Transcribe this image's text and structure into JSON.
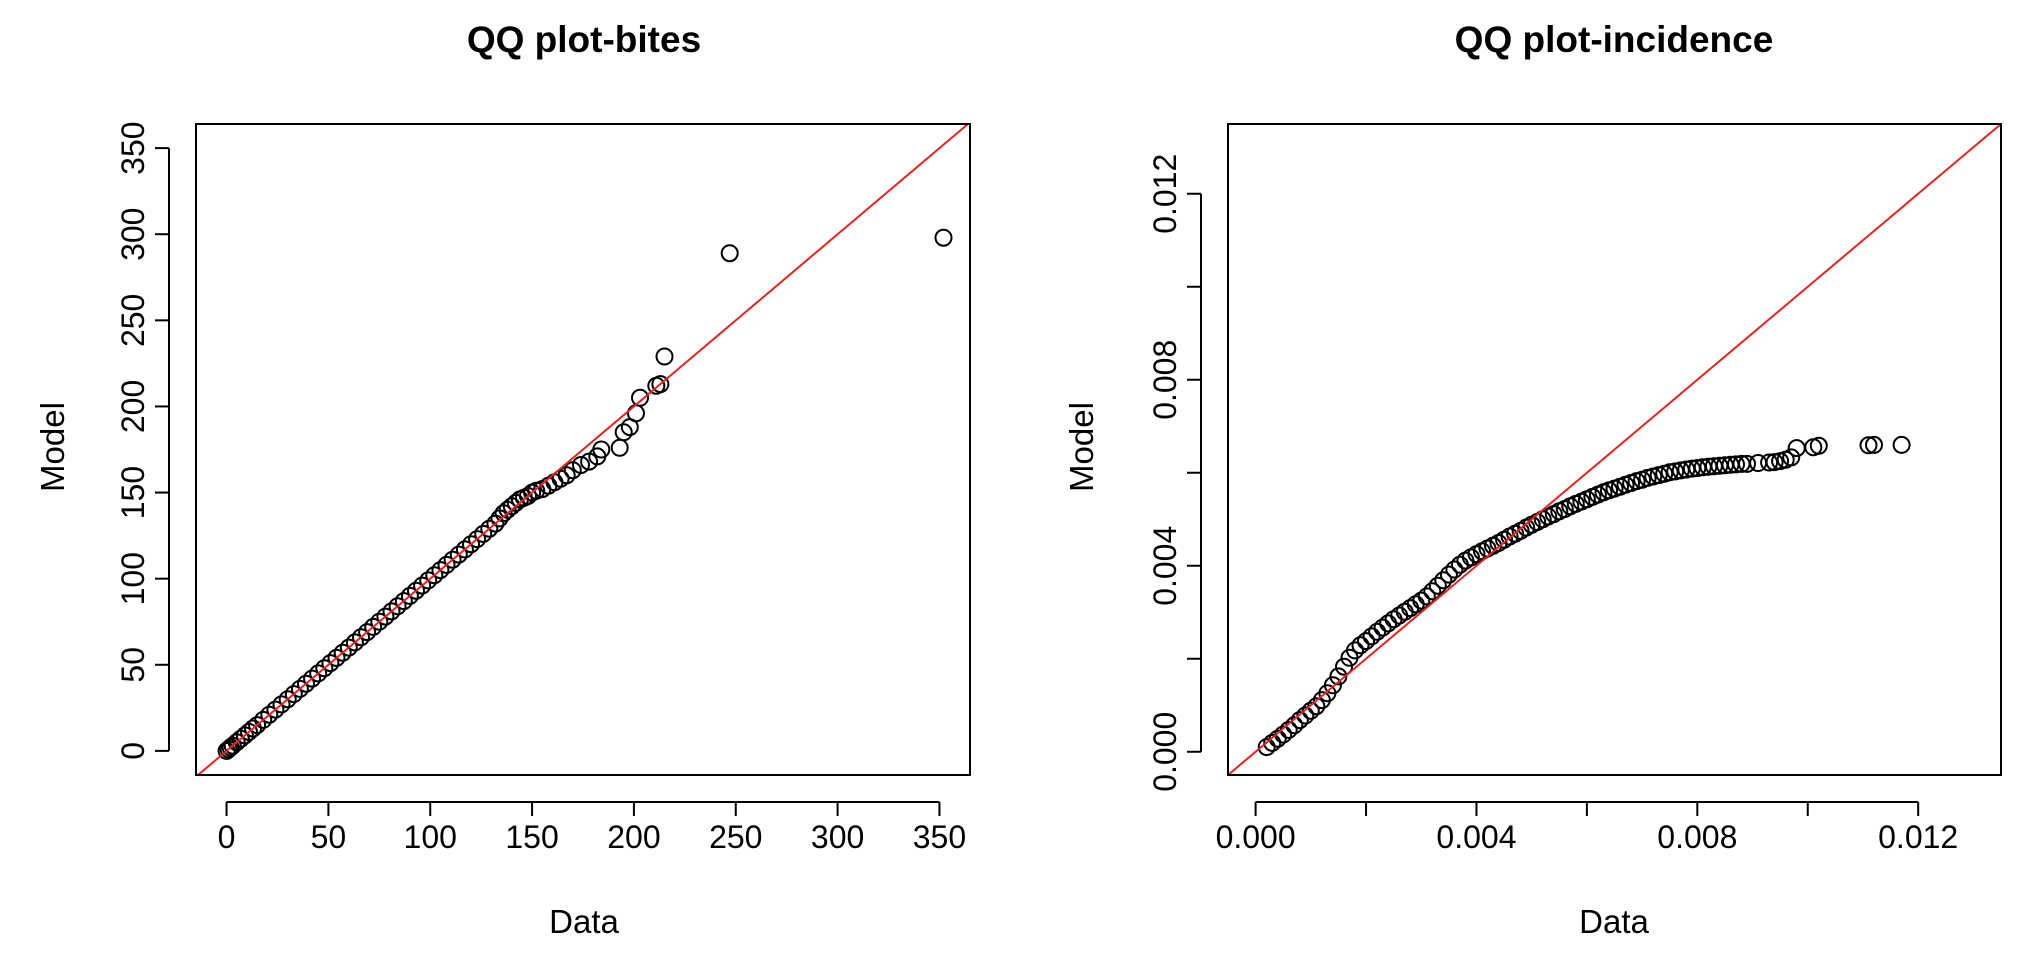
{
  "chart_data": [
    {
      "type": "scatter",
      "title": "QQ plot-bites",
      "xlabel": "Data",
      "ylabel": "Model",
      "xlim": [
        -15,
        365
      ],
      "ylim": [
        -14,
        364
      ],
      "xticks": [
        0,
        50,
        100,
        150,
        200,
        250,
        300,
        350
      ],
      "xtick_labels": [
        "0",
        "50",
        "100",
        "150",
        "200",
        "250",
        "300",
        "350"
      ],
      "yticks": [
        0,
        50,
        100,
        150,
        200,
        250,
        300,
        350
      ],
      "ytick_labels": [
        "0",
        "50",
        "100",
        "150",
        "200",
        "250",
        "300",
        "350"
      ],
      "reference_line": {
        "intercept": 0,
        "slope": 1,
        "color": "#e8231f"
      },
      "series": [
        {
          "marker": "open-circle",
          "x": [
            0,
            1,
            2,
            3,
            5,
            7,
            9,
            11,
            13,
            15,
            18,
            21,
            24,
            27,
            30,
            33,
            36,
            39,
            42,
            45,
            48,
            51,
            54,
            57,
            60,
            63,
            66,
            69,
            72,
            75,
            78,
            81,
            84,
            87,
            90,
            93,
            96,
            99,
            102,
            105,
            108,
            111,
            114,
            117,
            120,
            123,
            126,
            129,
            132,
            134,
            136,
            138,
            140,
            142,
            144,
            146,
            148,
            150,
            152,
            155,
            158,
            161,
            164,
            167,
            170,
            174,
            178,
            182,
            184,
            193,
            195,
            198,
            201,
            203,
            211,
            213,
            215,
            247,
            352
          ],
          "y": [
            0,
            1,
            2,
            3,
            5,
            7,
            9,
            11,
            13,
            15,
            18,
            21,
            24,
            27,
            30,
            33,
            36,
            39,
            42,
            45,
            48,
            51,
            54,
            57,
            60,
            63,
            66,
            69,
            72,
            75,
            78,
            81,
            84,
            87,
            90,
            93,
            96,
            99,
            102,
            105,
            108,
            111,
            114,
            117,
            120,
            123,
            126,
            129,
            132,
            135,
            138,
            140,
            142,
            144,
            146,
            147,
            148,
            150,
            151,
            152,
            154,
            156,
            158,
            160,
            163,
            166,
            168,
            171,
            175,
            176,
            185,
            188,
            196,
            205,
            212,
            213,
            229,
            289,
            298
          ]
        }
      ]
    },
    {
      "type": "scatter",
      "title": "QQ plot-incidence",
      "xlabel": "Data",
      "ylabel": "Model",
      "xlim": [
        -0.0005,
        0.0135
      ],
      "ylim": [
        -0.0005,
        0.0135
      ],
      "xticks": [
        0.0,
        0.002,
        0.004,
        0.006,
        0.008,
        0.01,
        0.012
      ],
      "xtick_labels": [
        "0.000",
        "",
        "0.004",
        "",
        "0.008",
        "",
        "0.012"
      ],
      "yticks": [
        0.0,
        0.002,
        0.004,
        0.006,
        0.008,
        0.01,
        0.012
      ],
      "ytick_labels": [
        "0.000",
        "",
        "0.004",
        "",
        "0.008",
        "",
        "0.012"
      ],
      "reference_line": {
        "intercept": 0,
        "slope": 1,
        "color": "#e8231f"
      },
      "series": [
        {
          "marker": "open-circle",
          "x": [
            0.0002,
            0.0003,
            0.0004,
            0.0005,
            0.0006,
            0.0007,
            0.0008,
            0.0009,
            0.001,
            0.0011,
            0.0012,
            0.0013,
            0.0014,
            0.0015,
            0.0016,
            0.0017,
            0.0018,
            0.0019,
            0.002,
            0.0021,
            0.0022,
            0.0023,
            0.0024,
            0.0025,
            0.0026,
            0.0027,
            0.0028,
            0.0029,
            0.003,
            0.0031,
            0.0032,
            0.0033,
            0.0034,
            0.0035,
            0.0036,
            0.0037,
            0.0038,
            0.0039,
            0.004,
            0.0041,
            0.0042,
            0.0043,
            0.0044,
            0.0045,
            0.0046,
            0.0047,
            0.0048,
            0.0049,
            0.005,
            0.0051,
            0.0052,
            0.0053,
            0.0054,
            0.0055,
            0.0056,
            0.0057,
            0.0058,
            0.0059,
            0.006,
            0.0061,
            0.0062,
            0.0063,
            0.0064,
            0.0065,
            0.0066,
            0.0067,
            0.0068,
            0.0069,
            0.007,
            0.0071,
            0.0072,
            0.0073,
            0.0074,
            0.0075,
            0.0076,
            0.0077,
            0.0078,
            0.0079,
            0.008,
            0.0081,
            0.0082,
            0.0083,
            0.0084,
            0.0085,
            0.0086,
            0.0087,
            0.0088,
            0.0089,
            0.0091,
            0.0093,
            0.0094,
            0.0095,
            0.0096,
            0.0097,
            0.0098,
            0.0101,
            0.0102,
            0.0111,
            0.0112,
            0.0117
          ],
          "y": [
            0.0001,
            0.00019,
            0.00028,
            0.00037,
            0.00047,
            0.00057,
            0.00068,
            0.00078,
            0.00088,
            0.00098,
            0.00111,
            0.00126,
            0.00143,
            0.00162,
            0.00183,
            0.00202,
            0.00218,
            0.00229,
            0.00238,
            0.00248,
            0.00258,
            0.00267,
            0.00276,
            0.00285,
            0.00293,
            0.00301,
            0.00309,
            0.00317,
            0.00325,
            0.00334,
            0.00345,
            0.00357,
            0.00369,
            0.00381,
            0.00392,
            0.00402,
            0.00411,
            0.00418,
            0.00425,
            0.00431,
            0.00437,
            0.00443,
            0.00449,
            0.00456,
            0.00463,
            0.00469,
            0.00475,
            0.00482,
            0.00488,
            0.00494,
            0.005,
            0.00506,
            0.00511,
            0.00517,
            0.00522,
            0.00528,
            0.00533,
            0.00538,
            0.00543,
            0.00548,
            0.00553,
            0.00558,
            0.00562,
            0.00566,
            0.0057,
            0.00574,
            0.00578,
            0.00582,
            0.00585,
            0.00589,
            0.00592,
            0.00595,
            0.00598,
            0.00601,
            0.00603,
            0.00605,
            0.00607,
            0.00609,
            0.0061,
            0.00612,
            0.00613,
            0.00614,
            0.00615,
            0.00616,
            0.00617,
            0.00618,
            0.00619,
            0.00619,
            0.00621,
            0.00622,
            0.00623,
            0.00625,
            0.00628,
            0.00633,
            0.00653,
            0.00655,
            0.00658,
            0.00659,
            0.0066,
            0.0066
          ]
        }
      ]
    }
  ]
}
